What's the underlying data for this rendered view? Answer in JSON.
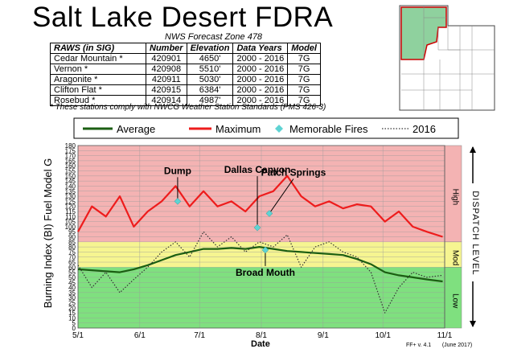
{
  "title": "Salt Lake Desert FDRA",
  "subtitle": "NWS Forecast Zone 478",
  "table": {
    "headers": [
      "RAWS (in SIG)",
      "Number",
      "Elevation",
      "Data Years",
      "Model"
    ],
    "rows": [
      [
        "Cedar Mountain *",
        "420901",
        "4650'",
        "2000 - 2016",
        "7G"
      ],
      [
        "Vernon *",
        "420908",
        "5510'",
        "2000 - 2016",
        "7G"
      ],
      [
        "Aragonite *",
        "420911",
        "5030'",
        "2000 - 2016",
        "7G"
      ],
      [
        "Clifton Flat *",
        "420915",
        "6384'",
        "2000 - 2016",
        "7G"
      ],
      [
        "Rosebud *",
        "420914",
        "4987'",
        "2000 - 2016",
        "7G"
      ]
    ],
    "footnote": "* These stations comply with NWCG Weather Station Standards (PMS 426-3)"
  },
  "legend": {
    "average": "Average",
    "maximum": "Maximum",
    "fires": "Memorable Fires",
    "year": "2016"
  },
  "footer": {
    "version": "FF+ v. 4.1",
    "date": "(June 2017)"
  },
  "chart_data": {
    "type": "line",
    "title": "",
    "ylabel": "Burning Index (BI) Fuel Model G",
    "xlabel": "Date",
    "ylim": [
      0,
      180
    ],
    "yticks": [
      0,
      5,
      10,
      15,
      20,
      25,
      30,
      35,
      40,
      45,
      50,
      55,
      60,
      65,
      70,
      75,
      80,
      85,
      90,
      95,
      100,
      105,
      110,
      115,
      120,
      125,
      130,
      135,
      140,
      145,
      150,
      155,
      160,
      165,
      170,
      175,
      180
    ],
    "xticks": [
      "5/1",
      "6/1",
      "7/1",
      "8/1",
      "9/1",
      "10/1",
      "11/1"
    ],
    "zones": [
      {
        "name": "Low",
        "from": 0,
        "to": 60,
        "color": "#7fe07f"
      },
      {
        "name": "Mod",
        "from": 60,
        "to": 85,
        "color": "#f6f591"
      },
      {
        "name": "High",
        "from": 85,
        "to": 180,
        "color": "#f4b3b3"
      }
    ],
    "right_label": "DISPATCH LEVEL",
    "series": [
      {
        "name": "Maximum",
        "color": "#ee1c1c",
        "x": [
          "5/1",
          "5/8",
          "5/15",
          "5/22",
          "5/29",
          "6/5",
          "6/12",
          "6/19",
          "6/26",
          "7/3",
          "7/10",
          "7/17",
          "7/24",
          "7/31",
          "8/7",
          "8/14",
          "8/21",
          "8/28",
          "9/4",
          "9/11",
          "9/18",
          "9/25",
          "10/2",
          "10/9",
          "10/16",
          "10/23",
          "10/31"
        ],
        "values": [
          95,
          120,
          110,
          130,
          100,
          115,
          125,
          140,
          120,
          135,
          120,
          125,
          115,
          130,
          135,
          150,
          130,
          120,
          125,
          118,
          122,
          120,
          105,
          115,
          100,
          95,
          90
        ]
      },
      {
        "name": "Average",
        "color": "#1b5e12",
        "x": [
          "5/1",
          "5/8",
          "5/15",
          "5/22",
          "5/29",
          "6/5",
          "6/12",
          "6/19",
          "6/26",
          "7/3",
          "7/10",
          "7/17",
          "7/24",
          "7/31",
          "8/7",
          "8/14",
          "8/21",
          "8/28",
          "9/4",
          "9/11",
          "9/18",
          "9/25",
          "10/2",
          "10/9",
          "10/16",
          "10/23",
          "10/31"
        ],
        "values": [
          58,
          57,
          56,
          55,
          58,
          62,
          67,
          72,
          75,
          78,
          78,
          79,
          78,
          80,
          78,
          76,
          75,
          74,
          73,
          72,
          68,
          63,
          55,
          52,
          50,
          48,
          46
        ]
      },
      {
        "name": "2016",
        "color": "#333333",
        "dashed": true,
        "x": [
          "5/1",
          "5/8",
          "5/15",
          "5/22",
          "5/29",
          "6/5",
          "6/12",
          "6/19",
          "6/26",
          "7/3",
          "7/10",
          "7/17",
          "7/24",
          "7/31",
          "8/7",
          "8/14",
          "8/21",
          "8/28",
          "9/4",
          "9/11",
          "9/18",
          "9/25",
          "10/2",
          "10/9",
          "10/16",
          "10/23",
          "10/31"
        ],
        "values": [
          62,
          40,
          55,
          35,
          48,
          60,
          75,
          85,
          70,
          95,
          80,
          90,
          75,
          85,
          80,
          92,
          60,
          80,
          85,
          75,
          70,
          55,
          15,
          40,
          55,
          50,
          52
        ]
      }
    ],
    "markers": {
      "name": "Memorable Fires",
      "color": "#5fd3d3",
      "points": [
        {
          "label": "Dump",
          "x": "6/20",
          "y": 125
        },
        {
          "label": "Dallas Canyon",
          "x": "7/30",
          "y": 99
        },
        {
          "label": "Patch Springs",
          "x": "8/5",
          "y": 113
        },
        {
          "label": "Broad Mouth",
          "x": "8/3",
          "y": 77
        }
      ]
    }
  }
}
